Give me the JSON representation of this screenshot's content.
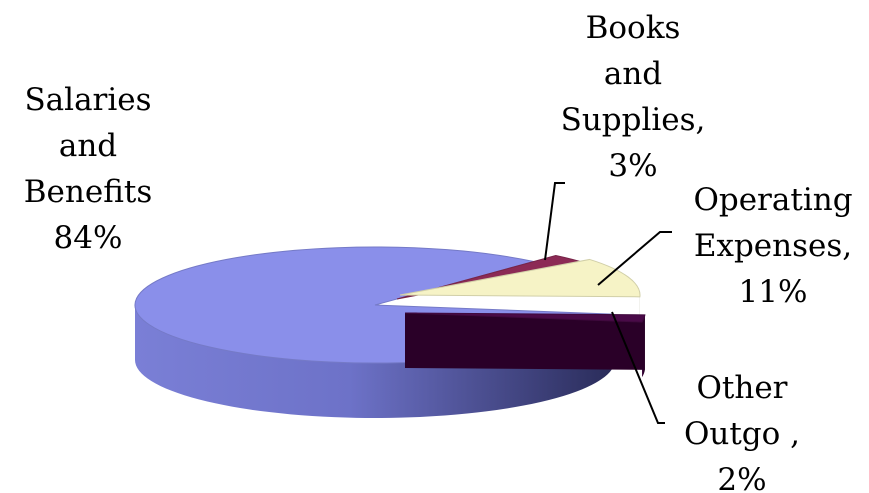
{
  "chart_data": {
    "type": "pie",
    "title": "",
    "style": "3d-exploded",
    "slices": [
      {
        "key": "salaries",
        "label_lines": [
          "Salaries",
          "and",
          "Benefits",
          "84%"
        ],
        "value": 84,
        "color": "#8a8fea"
      },
      {
        "key": "books",
        "label_lines": [
          "Books",
          "and",
          "Supplies,",
          "3%"
        ],
        "value": 3,
        "color": "#8c2a55"
      },
      {
        "key": "operating",
        "label_lines": [
          "Operating",
          "Expenses,",
          "11%"
        ],
        "value": 11,
        "color": "#f6f3c6"
      },
      {
        "key": "other",
        "label_lines": [
          "Other",
          "Outgo ,",
          "2%"
        ],
        "value": 2,
        "color": "#4a0a48"
      }
    ]
  }
}
